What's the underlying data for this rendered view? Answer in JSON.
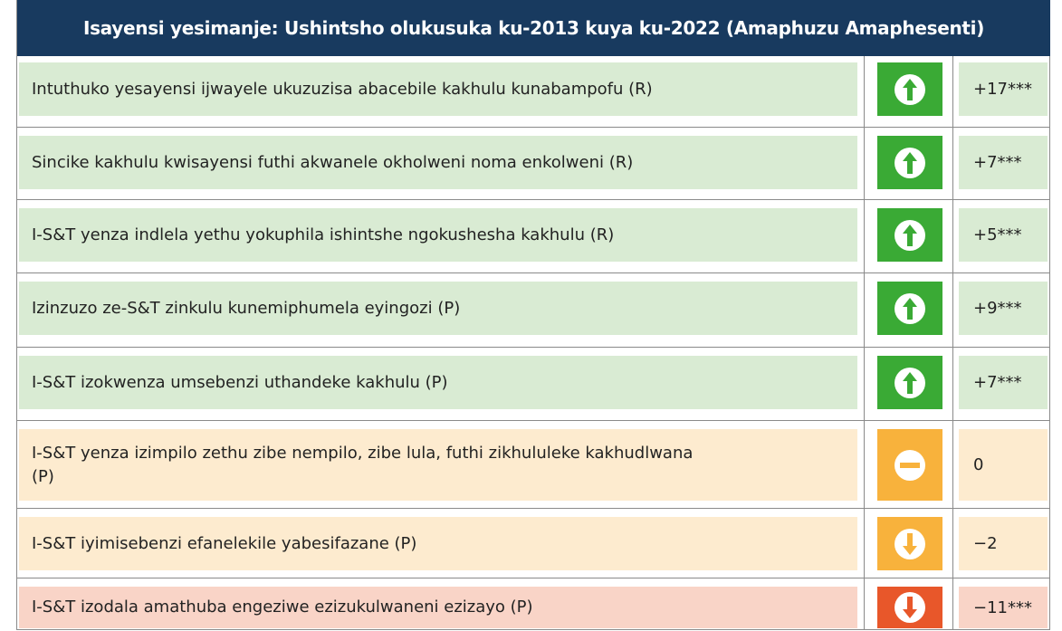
{
  "header": {
    "title": "Isayensi yesimanje: Ushintsho olukusuka ku-2013 kuya ku-2022 (Amaphuzu Amaphesenti)"
  },
  "table": {
    "rows": [
      {
        "label": "Intuthuko yesayensi ijwayele ukuzuzisa abacebile kakhulu kunabampofu (R)",
        "value": "+17***",
        "trend": "up",
        "color": "#3aaa35",
        "background": "#d9ebd3"
      },
      {
        "label": "Sincike kakhulu kwisayensi futhi akwanele okholweni noma enkolweni (R)",
        "value": "+7***",
        "trend": "up",
        "color": "#3aaa35",
        "background": "#d9ebd3"
      },
      {
        "label": "I-S&T yenza indlela yethu yokuphila ishintshe ngokushesha kakhulu (R)",
        "value": "+5***",
        "trend": "up",
        "color": "#3aaa35",
        "background": "#d9ebd3"
      },
      {
        "label": "Izinzuzo ze-S&T zinkulu kunemiphumela eyingozi (P)",
        "value": "+9***",
        "trend": "up",
        "color": "#3aaa35",
        "background": "#d9ebd3"
      },
      {
        "label": "I-S&T izokwenza umsebenzi uthandeke kakhulu (P)",
        "value": "+7***",
        "trend": "up",
        "color": "#3aaa35",
        "background": "#d9ebd3"
      },
      {
        "label": "I-S&T yenza izimpilo zethu zibe nempilo, zibe lula, futhi zikhululeke kakhudlwana (P)",
        "value": "0",
        "trend": "neutral",
        "color": "#f8b23c",
        "background": "#fdebcf"
      },
      {
        "label": "I-S&T iyimisebenzi efanelekile yabesifazane (P)",
        "value": "−2",
        "trend": "down",
        "color": "#f8b23c",
        "background": "#fdebcf"
      },
      {
        "label": "I-S&T izodala amathuba engeziwe ezizukulwaneni ezizayo (P)",
        "value": "−11***",
        "trend": "down",
        "color": "#e8572a",
        "background": "#f9d4c7"
      }
    ]
  }
}
